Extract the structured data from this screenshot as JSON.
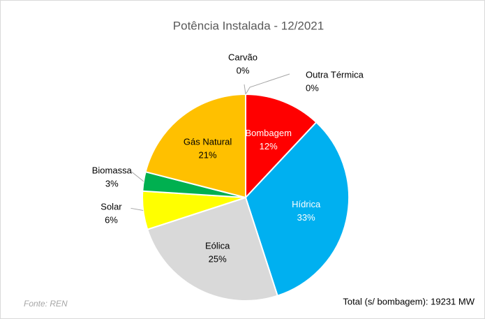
{
  "chart_data": {
    "type": "pie",
    "title": "Potência Instalada - 12/2021",
    "categories": [
      "Outra Térmica",
      "Bombagem",
      "Hídrica",
      "Eólica",
      "Solar",
      "Biomassa",
      "Gás Natural",
      "Carvão"
    ],
    "values": [
      0,
      12,
      33,
      25,
      6,
      3,
      21,
      0
    ],
    "value_labels": [
      "0%",
      "12%",
      "33%",
      "25%",
      "6%",
      "3%",
      "21%",
      "0%"
    ],
    "colors": [
      "#7f7f7f",
      "#ff0000",
      "#00b0f0",
      "#d9d9d9",
      "#ffff00",
      "#00b050",
      "#ffc000",
      "#404040"
    ],
    "label_colors": [
      "#000000",
      "#ffffff",
      "#ffffff",
      "#000000",
      "#000000",
      "#000000",
      "#000000",
      "#000000"
    ],
    "source": "Fonte: REN",
    "note": "Total (s/ bombagem): 19231 MW"
  }
}
